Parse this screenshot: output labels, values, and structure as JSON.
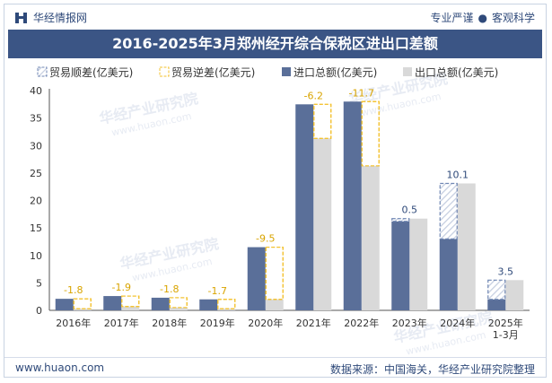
{
  "header": {
    "brand": "华经情报网",
    "tagline_left": "专业严谨",
    "tagline_dot": "●",
    "tagline_right": "客观科学"
  },
  "footer": {
    "website": "www.huaon.com",
    "source": "数据来源：中国海关，华经产业研究院整理"
  },
  "watermark": {
    "text": "华经产业研究院",
    "url": "www.huaon.com"
  },
  "colors": {
    "import": "#5a6f99",
    "export": "#d9d9d9",
    "surplus": "#6f86b3",
    "deficit": "#f3c12e",
    "title_bg": "#3b5585"
  },
  "chart_data": {
    "type": "bar",
    "title": "2016-2025年3月郑州经开综合保税区进出口差额",
    "xlabel": "",
    "ylabel": "",
    "ylim": [
      0,
      40
    ],
    "yticks": [
      0,
      5,
      10,
      15,
      20,
      25,
      30,
      35,
      40
    ],
    "categories": [
      "2016年",
      "2017年",
      "2018年",
      "2019年",
      "2020年",
      "2021年",
      "2022年",
      "2023年",
      "2024年",
      "2025年\n1-3月"
    ],
    "legend": [
      "贸易顺差(亿美元)",
      "贸易逆差(亿美元)",
      "进口总额(亿美元)",
      "出口总额(亿美元)"
    ],
    "series": [
      {
        "name": "进口总额(亿美元)",
        "values": [
          2.1,
          2.6,
          2.3,
          2.0,
          11.5,
          37.5,
          38.0,
          16.2,
          13.0,
          2.0
        ]
      },
      {
        "name": "出口总额(亿美元)",
        "values": [
          0.3,
          0.7,
          0.5,
          0.3,
          2.0,
          31.3,
          26.3,
          16.7,
          23.1,
          5.5
        ]
      }
    ],
    "balance": [
      -1.8,
      -1.9,
      -1.8,
      -1.7,
      -9.5,
      -6.2,
      -11.7,
      0.5,
      10.1,
      3.5
    ],
    "balance_labels": [
      "-1.8",
      "-1.9",
      "-1.8",
      "-1.7",
      "-9.5",
      "-6.2",
      "-11.7",
      "0.5",
      "10.1",
      "3.5"
    ]
  }
}
